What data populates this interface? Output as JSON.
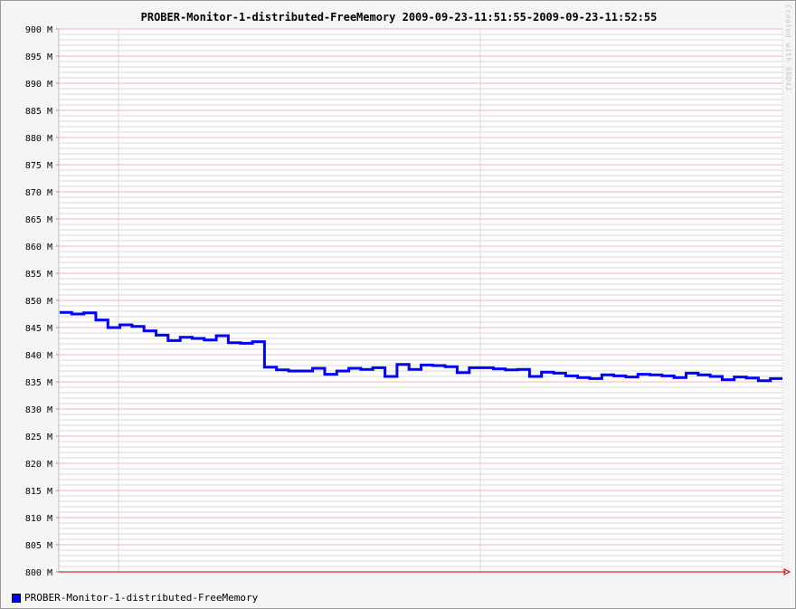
{
  "title": "PROBER-Monitor-1-distributed-FreeMemory 2009-09-23-11:51:55-2009-09-23-11:52:55",
  "watermark": "Created with RRD4J",
  "legend": {
    "label": "PROBER-Monitor-1-distributed-FreeMemory",
    "color": "#0000ff"
  },
  "colors": {
    "series": "#0000ff",
    "grid_major": "#f2b8b8",
    "grid_minor": "#d9d9d9",
    "axis": "#c00000",
    "background": "#f5f5f5",
    "plot_background": "#ffffff"
  },
  "chart_data": {
    "type": "line",
    "step": true,
    "grid": true,
    "legend_position": "bottom-left",
    "xlabel": "",
    "ylabel": "",
    "ylim": [
      800,
      900
    ],
    "y_unit": "M",
    "yticks": [
      "900 M",
      "895 M",
      "890 M",
      "885 M",
      "880 M",
      "875 M",
      "870 M",
      "865 M",
      "860 M",
      "855 M",
      "850 M",
      "845 M",
      "840 M",
      "835 M",
      "830 M",
      "825 M",
      "820 M",
      "815 M",
      "810 M",
      "805 M",
      "800 M"
    ],
    "x_start": "2009-09-23 11:51:55",
    "x_end": "2009-09-23 11:52:55",
    "series": [
      {
        "name": "PROBER-Monitor-1-distributed-FreeMemory",
        "values": [
          847.8,
          847.5,
          847.7,
          846.4,
          845.0,
          845.5,
          845.2,
          844.4,
          843.6,
          842.6,
          843.2,
          843.0,
          842.7,
          843.5,
          842.2,
          842.1,
          842.4,
          837.7,
          837.2,
          837.0,
          837.0,
          837.5,
          836.4,
          837.0,
          837.5,
          837.3,
          837.6,
          836.0,
          838.2,
          837.3,
          838.1,
          838.0,
          837.8,
          836.7,
          837.6,
          837.6,
          837.4,
          837.2,
          837.3,
          836.0,
          836.8,
          836.6,
          836.1,
          835.8,
          835.6,
          836.3,
          836.1,
          835.9,
          836.4,
          836.3,
          836.1,
          835.8,
          836.6,
          836.3,
          836.0,
          835.4,
          835.9,
          835.7,
          835.2,
          835.6
        ]
      }
    ]
  }
}
